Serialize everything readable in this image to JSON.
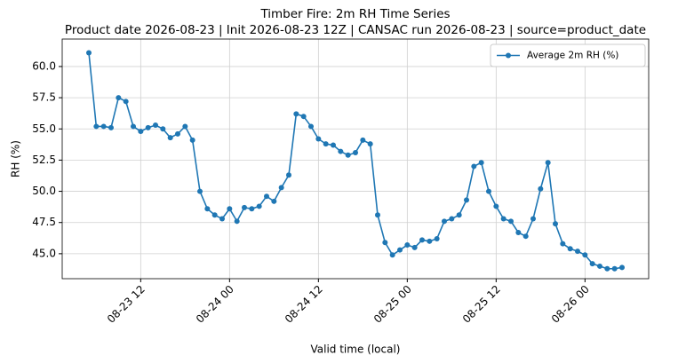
{
  "chart_data": {
    "type": "line",
    "title": "Timber Fire: 2m RH Time Series",
    "subtitle": "Product date 2026-08-23 | Init 2026-08-23 12Z | CANSAC run 2026-08-23 | source=product_date",
    "x_label": "Valid time (local)",
    "y_label": "RH (%)",
    "x": [
      "08-23 05",
      "08-23 06",
      "08-23 07",
      "08-23 08",
      "08-23 09",
      "08-23 10",
      "08-23 11",
      "08-23 12",
      "08-23 13",
      "08-23 14",
      "08-23 15",
      "08-23 16",
      "08-23 17",
      "08-23 18",
      "08-23 19",
      "08-23 20",
      "08-23 21",
      "08-23 22",
      "08-23 23",
      "08-24 00",
      "08-24 01",
      "08-24 02",
      "08-24 03",
      "08-24 04",
      "08-24 05",
      "08-24 06",
      "08-24 07",
      "08-24 08",
      "08-24 09",
      "08-24 10",
      "08-24 11",
      "08-24 12",
      "08-24 13",
      "08-24 14",
      "08-24 15",
      "08-24 16",
      "08-24 17",
      "08-24 18",
      "08-24 19",
      "08-24 20",
      "08-24 21",
      "08-24 22",
      "08-24 23",
      "08-25 00",
      "08-25 01",
      "08-25 02",
      "08-25 03",
      "08-25 04",
      "08-25 05",
      "08-25 06",
      "08-25 07",
      "08-25 08",
      "08-25 09",
      "08-25 10",
      "08-25 11",
      "08-25 12",
      "08-25 13",
      "08-25 14",
      "08-25 15",
      "08-25 16",
      "08-25 17",
      "08-25 18",
      "08-25 19",
      "08-25 20",
      "08-25 21",
      "08-25 22",
      "08-25 23",
      "08-26 00",
      "08-26 01",
      "08-26 02",
      "08-26 03",
      "08-26 04",
      "08-26 05"
    ],
    "series": [
      {
        "name": "Average 2m RH (%)",
        "color": "#1f77b4",
        "values": [
          61.1,
          55.2,
          55.2,
          55.1,
          57.5,
          57.2,
          55.2,
          54.8,
          55.1,
          55.3,
          55.0,
          54.3,
          54.6,
          55.2,
          54.1,
          50.0,
          48.6,
          48.1,
          47.8,
          48.6,
          47.6,
          48.7,
          48.6,
          48.8,
          49.6,
          49.2,
          50.3,
          51.3,
          56.2,
          56.0,
          55.2,
          54.2,
          53.8,
          53.7,
          53.2,
          52.9,
          53.1,
          54.1,
          53.8,
          48.1,
          45.9,
          44.9,
          45.3,
          45.7,
          45.5,
          46.1,
          46.0,
          46.2,
          47.6,
          47.8,
          48.1,
          49.3,
          52.0,
          52.3,
          50.0,
          48.8,
          47.8,
          47.6,
          46.7,
          46.4,
          47.8,
          50.2,
          52.3,
          47.4,
          45.8,
          45.4,
          45.2,
          44.9,
          44.2,
          44.0,
          43.8,
          43.8,
          43.9
        ]
      }
    ],
    "xlim": [
      "08-23 01:24",
      "08-26 08:36"
    ],
    "xticks": [
      "08-23 12",
      "08-24 00",
      "08-24 12",
      "08-25 00",
      "08-25 12",
      "08-26 00"
    ],
    "ylim": [
      43.0,
      62.2
    ],
    "yticks": [
      {
        "value": 45,
        "label": "45.0"
      },
      47.5,
      {
        "value": 50,
        "label": "50.0"
      },
      52.5,
      {
        "value": 55,
        "label": "55.0"
      },
      57.5,
      {
        "value": 60,
        "label": "60.0"
      }
    ],
    "grid": true,
    "legend": "upper right"
  }
}
